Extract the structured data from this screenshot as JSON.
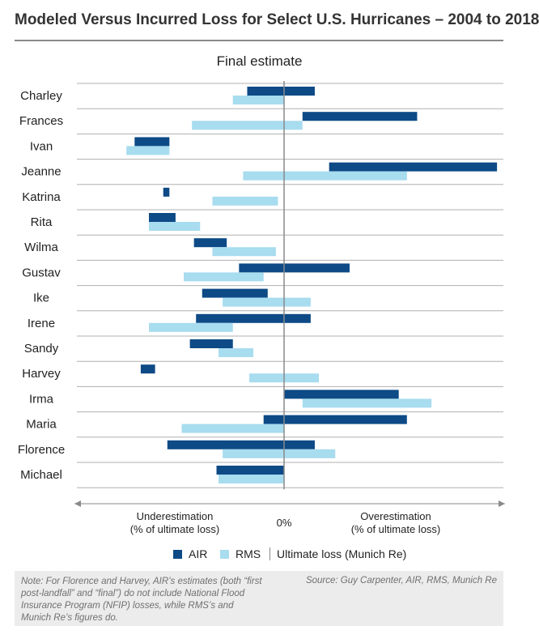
{
  "title": "Modeled Versus Incurred Loss for Select U.S. Hurricanes – 2004 to 2018",
  "chart_data": {
    "type": "bar",
    "orientation": "horizontal",
    "title": "Final estimate",
    "categories": [
      "Charley",
      "Frances",
      "Ivan",
      "Jeanne",
      "Katrina",
      "Rita",
      "Wilma",
      "Gustav",
      "Ike",
      "Irene",
      "Sandy",
      "Harvey",
      "Irma",
      "Maria",
      "Florence",
      "Michael"
    ],
    "series": [
      {
        "name": "AIR",
        "color": "#0d4a86",
        "bars": [
          [
            -0.18,
            0.15
          ],
          [
            0.09,
            0.65
          ],
          [
            -0.73,
            -0.56
          ],
          [
            0.22,
            1.04
          ],
          [
            -0.59,
            -0.56
          ],
          [
            -0.66,
            -0.53
          ],
          [
            -0.44,
            -0.28
          ],
          [
            -0.22,
            0.32
          ],
          [
            -0.4,
            -0.08
          ],
          [
            -0.43,
            0.13
          ],
          [
            -0.46,
            -0.25
          ],
          [
            -0.7,
            -0.63
          ],
          [
            0.0,
            0.56
          ],
          [
            -0.1,
            0.6
          ],
          [
            -0.57,
            0.15
          ],
          [
            -0.33,
            0.0
          ]
        ]
      },
      {
        "name": "RMS",
        "color": "#a8dcef",
        "bars": [
          [
            -0.25,
            0.0
          ],
          [
            -0.45,
            0.09
          ],
          [
            -0.77,
            -0.56
          ],
          [
            -0.2,
            0.6
          ],
          [
            -0.35,
            -0.03
          ],
          [
            -0.66,
            -0.41
          ],
          [
            -0.35,
            -0.04
          ],
          [
            -0.49,
            -0.1
          ],
          [
            -0.3,
            0.13
          ],
          [
            -0.66,
            -0.25
          ],
          [
            -0.32,
            -0.15
          ],
          [
            -0.17,
            0.17
          ],
          [
            0.09,
            0.72
          ],
          [
            -0.5,
            0.0
          ],
          [
            -0.3,
            0.25
          ],
          [
            -0.32,
            0.0
          ]
        ]
      }
    ],
    "x_tick_labels": [
      "0%"
    ],
    "axis_annotations": {
      "left_line1": "Underestimation",
      "left_line2": "(% of ultimate loss)",
      "right_line1": "Overestimation",
      "right_line2": "(% of ultimate loss)"
    },
    "reference_line": "Ultimate loss (Munich Re)",
    "legend_placement": "bottom"
  },
  "legend": {
    "air": "AIR",
    "rms": "RMS",
    "reference": "Ultimate loss (Munich Re)"
  },
  "footer": {
    "note": "Note: For Florence and Harvey, AIR’s estimates (both “first post-landfall” and “final”) do not include National Flood Insurance Program (NFIP) losses, while RMS’s and Munich Re’s figures do.",
    "source": "Source: Guy Carpenter, AIR, RMS, Munich Re"
  },
  "colors": {
    "air": "#0d4a86",
    "rms": "#a8dcef",
    "grid": "#9a9a9a",
    "footer_bg": "#ececec"
  }
}
